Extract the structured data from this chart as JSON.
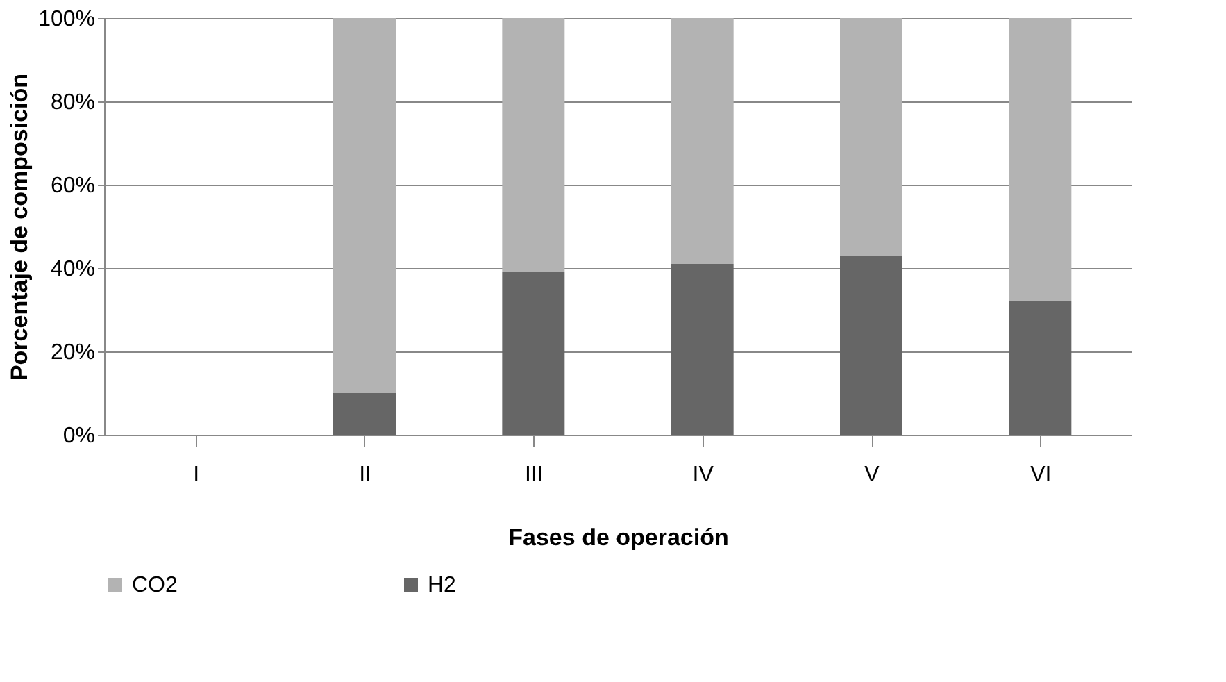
{
  "chart_data": {
    "type": "bar",
    "stacked": true,
    "xlabel": "Fases de operación",
    "ylabel": "Porcentaje de composición",
    "categories": [
      "I",
      "II",
      "III",
      "IV",
      "V",
      "VI"
    ],
    "series": [
      {
        "name": "H2",
        "color": "#666666",
        "values": [
          0,
          10,
          39,
          41,
          43,
          32
        ]
      },
      {
        "name": "CO2",
        "color": "#b3b3b3",
        "values": [
          0,
          90,
          61,
          59,
          57,
          68
        ]
      }
    ],
    "ylim": [
      0,
      100
    ],
    "yticks": [
      {
        "value": 0,
        "label": "0%"
      },
      {
        "value": 20,
        "label": "20%"
      },
      {
        "value": 40,
        "label": "40%"
      },
      {
        "value": 60,
        "label": "60%"
      },
      {
        "value": 80,
        "label": "80%"
      },
      {
        "value": 100,
        "label": "100%"
      }
    ],
    "grid": "y",
    "legend": "bottom"
  }
}
